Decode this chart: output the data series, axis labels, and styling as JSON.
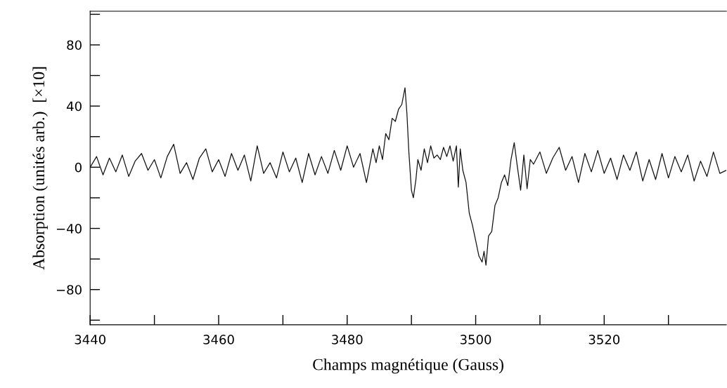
{
  "chart_data": {
    "type": "line",
    "xlabel": "Champs magnétique (Gauss)",
    "ylabel": "Absorption (unités arb.)  [×10]",
    "xlim": [
      3440,
      3539
    ],
    "ylim": [
      -103,
      102
    ],
    "xticks": [
      3440,
      {
        "value": 3450,
        "label": null
      },
      3460,
      {
        "value": 3470,
        "label": null
      },
      3480,
      {
        "value": 3490,
        "label": null
      },
      3500,
      {
        "value": 3510,
        "label": null
      },
      3520,
      {
        "value": 3530,
        "label": null
      }
    ],
    "yticks": [
      {
        "value": -100,
        "label": null
      },
      -80,
      {
        "value": -60,
        "label": null
      },
      -40,
      {
        "value": -20,
        "label": null
      },
      0,
      {
        "value": 20,
        "label": null
      },
      40,
      {
        "value": 60,
        "label": null
      },
      80,
      {
        "value": 100,
        "label": null
      }
    ],
    "grid": false,
    "legend": false,
    "marker": "none",
    "line_style": "solid",
    "series": [
      {
        "color": "#111111",
        "x": [
          3440,
          3441,
          3442,
          3443,
          3444,
          3445,
          3446,
          3447,
          3448,
          3449,
          3450,
          3451,
          3452,
          3453,
          3454,
          3455,
          3456,
          3457,
          3458,
          3459,
          3460,
          3461,
          3462,
          3463,
          3464,
          3465,
          3466,
          3467,
          3468,
          3469,
          3470,
          3471,
          3472,
          3473,
          3474,
          3475,
          3476,
          3477,
          3478,
          3479,
          3480,
          3481,
          3482,
          3483,
          3484,
          3484.5,
          3485,
          3485.5,
          3486,
          3486.5,
          3487,
          3487.5,
          3488,
          3488.5,
          3489,
          3489.3,
          3489.6,
          3490,
          3490.3,
          3490.7,
          3491,
          3491.5,
          3492,
          3492.5,
          3493,
          3493.5,
          3494,
          3494.5,
          3495,
          3495.5,
          3496,
          3496.5,
          3497,
          3497.3,
          3497.6,
          3498,
          3498.5,
          3499,
          3499.5,
          3500,
          3500.5,
          3501,
          3501.3,
          3501.6,
          3502,
          3502.5,
          3503,
          3503.5,
          3504,
          3504.5,
          3505,
          3505.5,
          3506,
          3506.5,
          3507,
          3507.5,
          3508,
          3508.5,
          3509,
          3510,
          3511,
          3512,
          3513,
          3514,
          3515,
          3516,
          3517,
          3518,
          3519,
          3520,
          3521,
          3522,
          3523,
          3524,
          3525,
          3526,
          3527,
          3528,
          3529,
          3530,
          3531,
          3532,
          3533,
          3534,
          3535,
          3536,
          3537,
          3538,
          3539
        ],
        "values": [
          0,
          7,
          -5,
          6,
          -3,
          8,
          -6,
          4,
          9,
          -2,
          5,
          -7,
          7,
          15,
          -4,
          3,
          -8,
          6,
          12,
          -3,
          5,
          -6,
          9,
          -2,
          8,
          -9,
          14,
          -4,
          3,
          -7,
          10,
          -3,
          6,
          -10,
          9,
          -5,
          7,
          -4,
          11,
          -2,
          14,
          0,
          9,
          -10,
          12,
          3,
          14,
          5,
          22,
          18,
          32,
          30,
          38,
          41,
          52,
          35,
          10,
          -15,
          -20,
          -8,
          5,
          -2,
          12,
          3,
          14,
          6,
          8,
          5,
          13,
          7,
          14,
          4,
          14,
          -13,
          12,
          -2,
          -10,
          -30,
          -38,
          -48,
          -58,
          -62,
          -55,
          -64,
          -45,
          -42,
          -25,
          -20,
          -10,
          -5,
          -12,
          5,
          16,
          0,
          -15,
          8,
          -14,
          5,
          2,
          10,
          -4,
          6,
          13,
          -2,
          7,
          -10,
          9,
          -3,
          11,
          -4,
          6,
          -8,
          8,
          -2,
          10,
          -9,
          5,
          -8,
          9,
          -7,
          7,
          -3,
          8,
          -9,
          4,
          -6,
          10,
          -4,
          -2
        ]
      }
    ]
  }
}
